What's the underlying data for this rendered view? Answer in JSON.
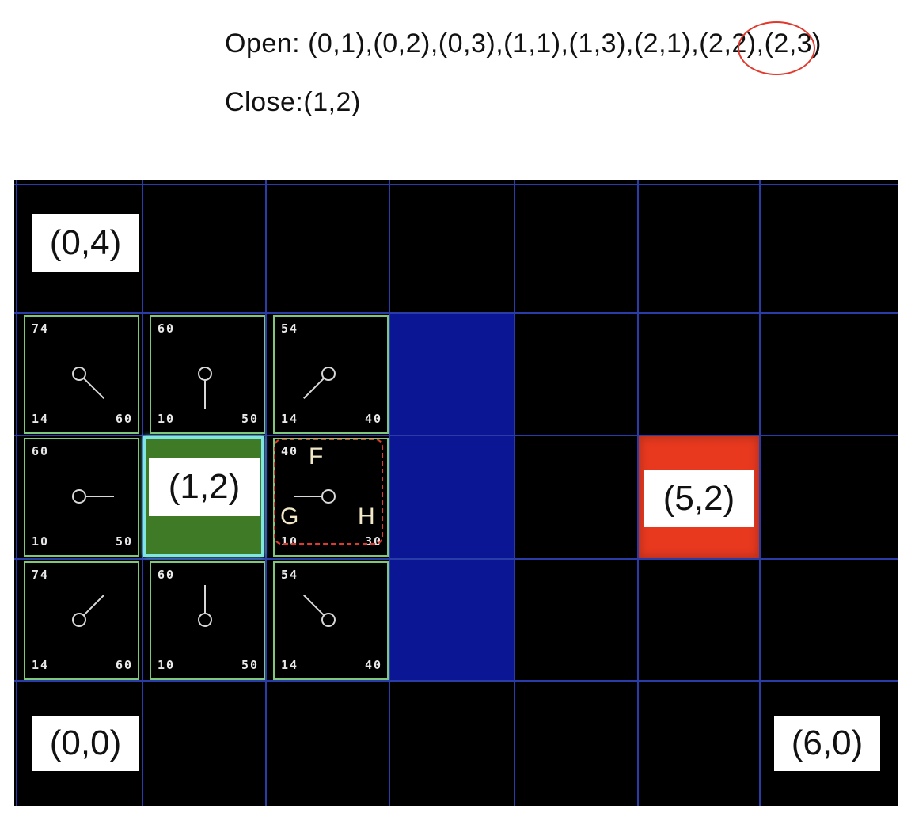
{
  "open_list": {
    "label": "Open: ",
    "before_highlight": "(0,1),(0,2),(0,3),(1,1),(1,3),(2,1),",
    "highlighted": "(2,2)",
    "after_highlight": ",(2,3)"
  },
  "closed_list": {
    "text": "Close:(1,2)"
  },
  "grid": {
    "columns": 7,
    "rows": 5,
    "colors": {
      "background": "#000000",
      "gridline": "#2a3ca8",
      "wall": "#0a1694",
      "goal": "#e8391f",
      "start": "#3f7a26",
      "start_border": "#7fe6e0",
      "open_border": "#7fc87a",
      "highlight": "#e03a2e"
    },
    "wall_cells": [
      [
        3,
        1
      ],
      [
        3,
        2
      ],
      [
        3,
        3
      ]
    ],
    "goal_cell": [
      5,
      2
    ],
    "start_cell": [
      1,
      2
    ],
    "corner_labels": {
      "top_left": "(0,4)",
      "bottom_left": "(0,0)",
      "bottom_right": "(6,0)",
      "start": "(1,2)",
      "goal": "(5,2)"
    },
    "open_nodes": [
      {
        "cell": [
          0,
          3
        ],
        "f": "74",
        "g": "14",
        "h": "60",
        "parent_direction": "down-right"
      },
      {
        "cell": [
          1,
          3
        ],
        "f": "60",
        "g": "10",
        "h": "50",
        "parent_direction": "down"
      },
      {
        "cell": [
          2,
          3
        ],
        "f": "54",
        "g": "14",
        "h": "40",
        "parent_direction": "down-left"
      },
      {
        "cell": [
          0,
          2
        ],
        "f": "60",
        "g": "10",
        "h": "50",
        "parent_direction": "right"
      },
      {
        "cell": [
          2,
          2
        ],
        "f": "40",
        "g": "10",
        "h": "30",
        "parent_direction": "left"
      },
      {
        "cell": [
          0,
          1
        ],
        "f": "74",
        "g": "14",
        "h": "60",
        "parent_direction": "up-right"
      },
      {
        "cell": [
          1,
          1
        ],
        "f": "60",
        "g": "10",
        "h": "50",
        "parent_direction": "up"
      },
      {
        "cell": [
          2,
          1
        ],
        "f": "54",
        "g": "14",
        "h": "40",
        "parent_direction": "up-left"
      }
    ],
    "legend": {
      "f": "F",
      "g": "G",
      "h": "H"
    }
  }
}
